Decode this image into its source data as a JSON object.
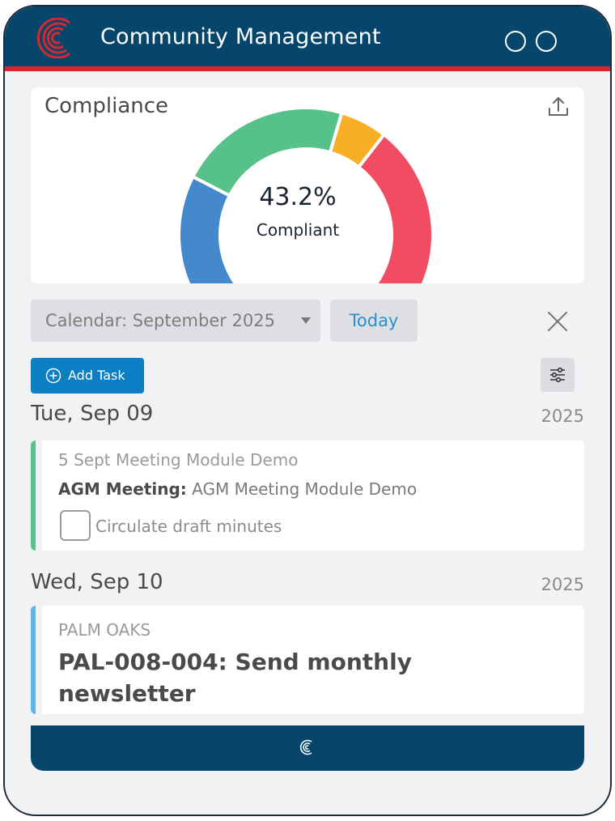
{
  "header": {
    "title": "Community Management",
    "logo_icon": "c-logo-icon",
    "brand_color": "#06466c",
    "accent_color": "#d6282e"
  },
  "compliance": {
    "title": "Compliance",
    "value": "43.2%",
    "label": "Compliant",
    "chart_data": {
      "type": "pie",
      "segments": [
        {
          "color": "#4489cc",
          "share": 0.27
        },
        {
          "color": "#57c18a",
          "share": 0.22
        },
        {
          "color": "#f8ae25",
          "share": 0.06
        },
        {
          "color": "#f14c62",
          "share": 0.27
        }
      ]
    }
  },
  "toolbar": {
    "calendar_label": "Calendar: September 2025",
    "today_label": "Today",
    "add_task_label": "Add Task"
  },
  "days": [
    {
      "date": "Tue, Sep 09",
      "year": "2025",
      "task": {
        "subtitle": "5 Sept Meeting Module Demo",
        "type_label": "AGM Meeting:",
        "type_value": "AGM Meeting Module Demo",
        "checklist_item": "Circulate draft minutes",
        "accent": "#57c18a"
      }
    },
    {
      "date": "Wed, Sep 10",
      "year": "2025",
      "task": {
        "subtitle": "PALM OAKS",
        "title": "PAL-008-004: Send monthly newsletter",
        "accent": "#5bb7e8"
      }
    }
  ]
}
